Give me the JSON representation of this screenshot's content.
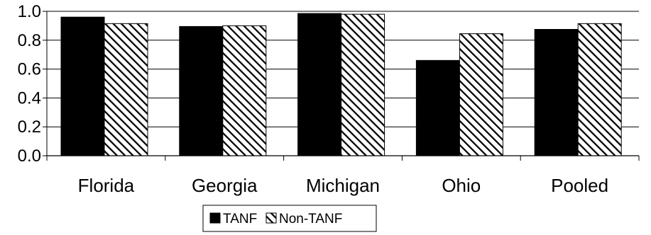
{
  "chart_data": {
    "type": "bar",
    "categories": [
      "Florida",
      "Georgia",
      "Michigan",
      "Ohio",
      "Pooled"
    ],
    "series": [
      {
        "name": "TANF",
        "values": [
          0.96,
          0.895,
          0.985,
          0.66,
          0.875
        ],
        "color": "#000000",
        "fill": "solid"
      },
      {
        "name": "Non-TANF",
        "values": [
          0.915,
          0.9,
          0.98,
          0.845,
          0.915
        ],
        "color": "#000000",
        "fill": "diagonal-hatch"
      }
    ],
    "title": "",
    "xlabel": "",
    "ylabel": "",
    "ylim": [
      0,
      1.0
    ],
    "yticks": [
      "0.0",
      "0.2",
      "0.4",
      "0.6",
      "0.8",
      "1.0"
    ],
    "grid": true,
    "legend": {
      "placement": "bottom-center",
      "entries": [
        "TANF",
        "Non-TANF"
      ]
    }
  }
}
